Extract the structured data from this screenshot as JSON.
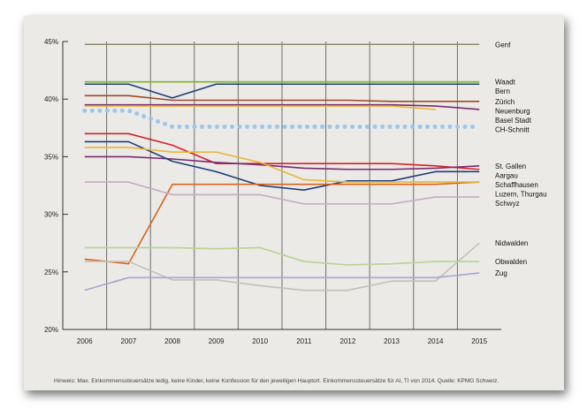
{
  "chart_data": {
    "type": "line",
    "x": [
      2006,
      2007,
      2008,
      2009,
      2010,
      2011,
      2012,
      2013,
      2014,
      2015
    ],
    "ylim": [
      20,
      45
    ],
    "yticks": [
      "20%",
      "25%",
      "30%",
      "35%",
      "40%",
      "45%"
    ],
    "grid": "vertical",
    "legend": "right-labels",
    "series": [
      {
        "name": "Genf",
        "color": "#8f8a6a",
        "values": [
          44.75,
          44.75,
          44.75,
          44.75,
          44.75,
          44.75,
          44.75,
          44.75,
          44.75,
          44.75
        ]
      },
      {
        "name": "Waadt",
        "color": "#78b52c",
        "values": [
          41.5,
          41.5,
          41.5,
          41.5,
          41.5,
          41.5,
          41.5,
          41.5,
          41.5,
          41.5
        ]
      },
      {
        "name": "Bern",
        "color": "#1d3d78",
        "values": [
          41.3,
          41.3,
          40.1,
          41.3,
          41.3,
          41.3,
          41.3,
          41.3,
          41.3,
          41.3
        ]
      },
      {
        "name": "Zürich",
        "color": "#9c4a28",
        "values": [
          40.3,
          40.3,
          39.9,
          39.9,
          39.9,
          39.9,
          39.9,
          39.8,
          39.8,
          39.8
        ]
      },
      {
        "name": "Neuenburg",
        "color": "#7a2a6e",
        "values": [
          39.5,
          39.5,
          39.5,
          39.5,
          39.5,
          39.5,
          39.5,
          39.5,
          39.4,
          39.1
        ]
      },
      {
        "name": "Basel Stadt",
        "color": "#e8b63a",
        "values": [
          39.4,
          39.4,
          39.4,
          39.4,
          39.4,
          39.4,
          39.4,
          39.4,
          39.1,
          null
        ]
      },
      {
        "name": "CH-Schnitt",
        "color": "#9cc6ec",
        "dotted": true,
        "values": [
          39.0,
          39.0,
          37.6,
          37.6,
          37.6,
          37.6,
          37.6,
          37.6,
          37.6,
          37.6
        ]
      },
      {
        "name": "Aargau",
        "color": "#d5222b",
        "values": [
          37.0,
          37.0,
          36.0,
          34.4,
          34.4,
          34.4,
          34.4,
          34.4,
          34.2,
          33.9
        ]
      },
      {
        "name": "St. Gallen",
        "color": "#7a2a6e",
        "values": [
          35.0,
          35.0,
          34.8,
          34.5,
          34.3,
          34.0,
          33.9,
          33.9,
          34.0,
          34.2
        ]
      },
      {
        "name": "Schaffhausen",
        "color": "#1d3d78",
        "values": [
          36.3,
          36.3,
          34.6,
          33.7,
          32.5,
          32.1,
          32.9,
          32.9,
          33.7,
          33.7
        ]
      },
      {
        "name": "Luzern, Thurgau",
        "color": "#d9641e",
        "values": [
          26.1,
          25.7,
          32.6,
          32.6,
          32.6,
          32.6,
          32.6,
          32.6,
          32.6,
          32.8
        ]
      },
      {
        "name": "",
        "color": "#e8b63a",
        "values": [
          35.8,
          35.8,
          35.4,
          35.4,
          34.5,
          33.0,
          32.8,
          32.8,
          32.8,
          32.8
        ]
      },
      {
        "name": "Schwyz",
        "color": "#c6a9c6",
        "values": [
          32.8,
          32.8,
          31.7,
          31.7,
          31.7,
          30.9,
          30.9,
          30.9,
          31.5,
          31.5
        ]
      },
      {
        "name": "Nidwalden",
        "color": "#c4c0b8",
        "values": [
          25.9,
          25.9,
          24.3,
          24.3,
          23.8,
          23.4,
          23.4,
          24.2,
          24.2,
          27.5
        ]
      },
      {
        "name": "Obwalden",
        "color": "#b4d493",
        "values": [
          27.1,
          27.1,
          27.1,
          27.0,
          27.1,
          25.9,
          25.6,
          25.7,
          25.9,
          25.9
        ]
      },
      {
        "name": "Zug",
        "color": "#a8a6cc",
        "values": [
          23.4,
          24.5,
          24.5,
          24.5,
          24.5,
          24.5,
          24.5,
          24.5,
          24.5,
          24.9
        ]
      }
    ]
  },
  "footnote": "Hinweis: Max. Einkommenssteuersätze ledig, keine Kinder, keine Konfession für den jeweiligen Hauptort. Einkommenssteuersätze für AI, TI von 2014. Quelle: KPMG Schweiz."
}
